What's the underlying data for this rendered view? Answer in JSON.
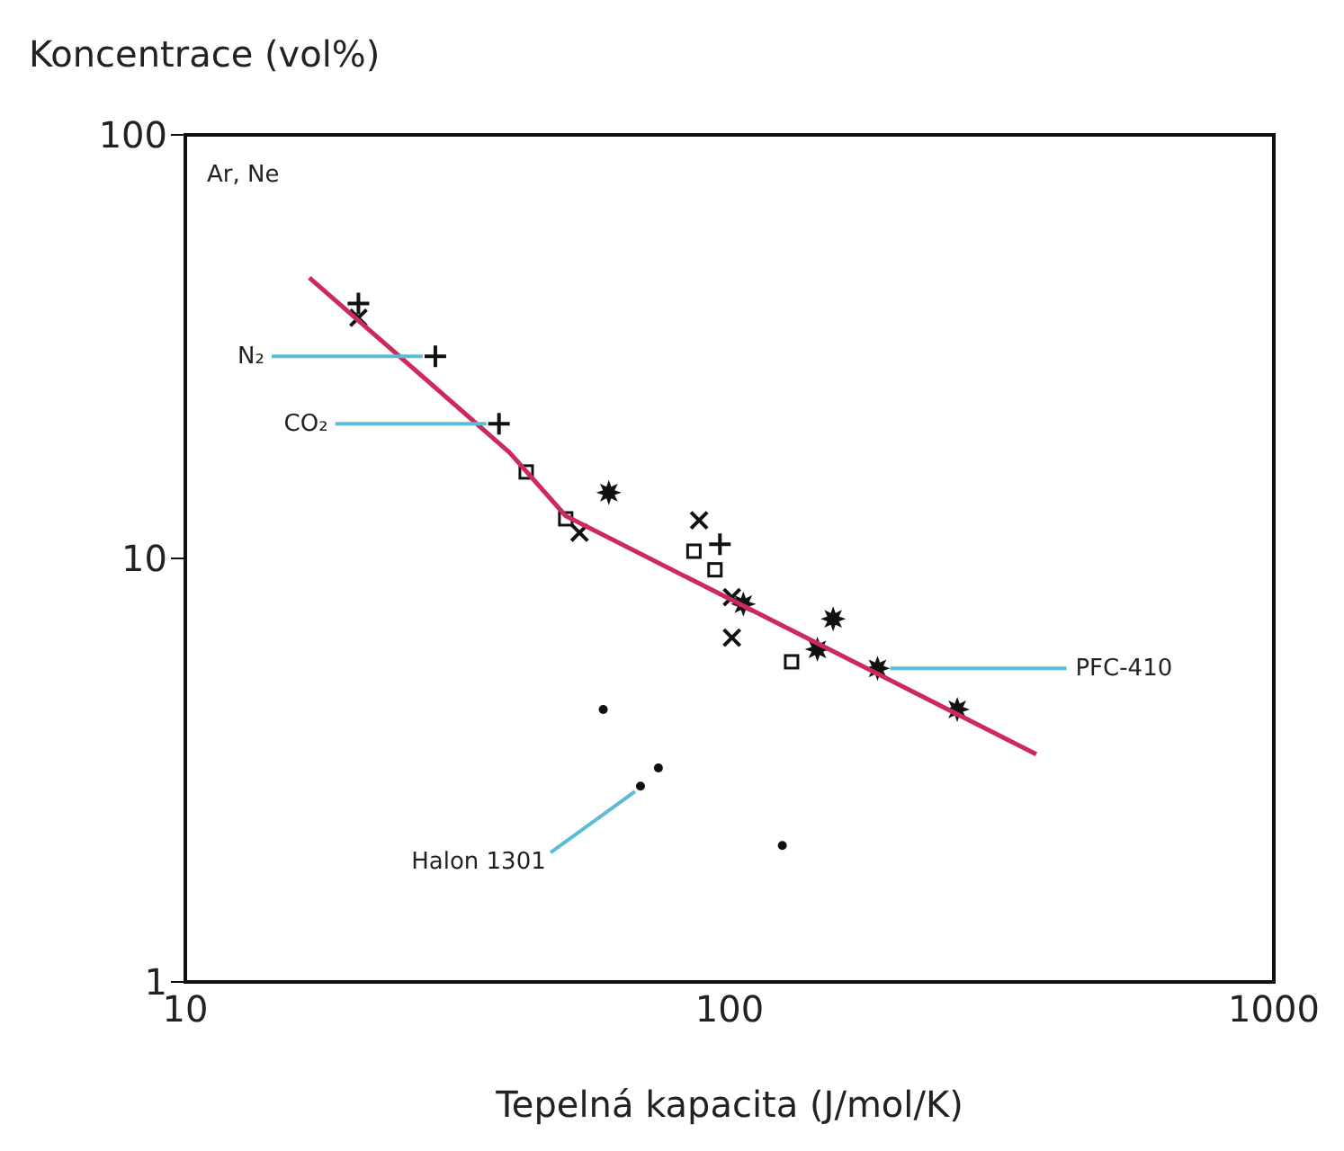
{
  "chart_data": {
    "type": "scatter",
    "xlabel": "Tepelná kapacita (J/mol/K)",
    "ylabel": "Koncentrace (vol%)",
    "log": "xy",
    "xlim": [
      10,
      1000
    ],
    "ylim": [
      1,
      100
    ],
    "xticks": [
      10,
      100,
      1000
    ],
    "yticks": [
      1,
      10,
      100
    ],
    "grid": false,
    "series": [
      {
        "marker": "cross",
        "color": "#111111",
        "x": [
          20.8,
          28.8,
          37.7,
          96
        ],
        "values": [
          40,
          30,
          20.8,
          10.8
        ]
      },
      {
        "marker": "x",
        "color": "#111111",
        "x": [
          20.8,
          53,
          87.9,
          101,
          101
        ],
        "values": [
          37,
          11.5,
          12.3,
          8.1,
          6.5
        ]
      },
      {
        "marker": "square",
        "color": "#111111",
        "x": [
          42.3,
          50,
          86,
          94,
          130
        ],
        "values": [
          16,
          12.4,
          10.4,
          9.4,
          5.7
        ]
      },
      {
        "marker": "star",
        "color": "#111111",
        "x": [
          60,
          106,
          155,
          145,
          187,
          262
        ],
        "values": [
          14.3,
          7.8,
          7.2,
          6.1,
          5.5,
          4.4
        ]
      },
      {
        "marker": "circle",
        "color": "#111111",
        "x": [
          58.6,
          68.6,
          74,
          125
        ],
        "values": [
          4.4,
          2.9,
          3.2,
          2.1
        ]
      },
      {
        "type": "line",
        "marker": "none",
        "color": "#cc2a5a",
        "x": [
          16.9,
          39.4,
          50,
          366
        ],
        "values": [
          46,
          17.8,
          12.6,
          3.45
        ]
      }
    ],
    "annotations": [
      {
        "text": "Ar, Ne"
      },
      {
        "text": "N₂",
        "x": 28.8,
        "y": 30
      },
      {
        "text": "CO₂",
        "x": 37.7,
        "y": 20.8
      },
      {
        "text": "PFC-410",
        "x": 187,
        "y": 5.5
      },
      {
        "text": "Halon 1301",
        "x": 68.6,
        "y": 2.9
      }
    ]
  }
}
